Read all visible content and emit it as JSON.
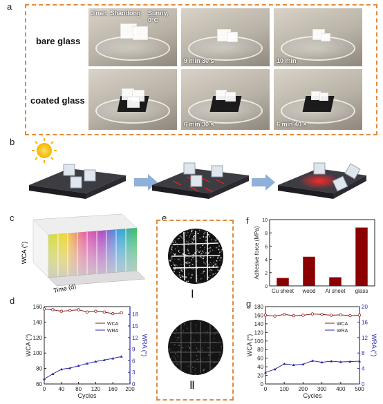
{
  "panels": {
    "a": "a",
    "b": "b",
    "c": "c",
    "d": "d",
    "e": "e",
    "f": "f",
    "g": "g"
  },
  "panel_a": {
    "row_labels": [
      "bare glass",
      "coated glass"
    ],
    "overlay_location": "Jinan, Shandong",
    "overlay_weather": "Sunny, 0°C",
    "times_bare": [
      "9 min 30 s",
      "10 min"
    ],
    "times_coated": [
      "6 min 30 s",
      "6 min 40 s"
    ]
  },
  "panel_c": {
    "z_label": "WCA (°)",
    "x_label": "Time (d)"
  },
  "panel_e": {
    "label_1": "Ⅰ",
    "label_2": "Ⅱ"
  },
  "colors": {
    "dashed_border": "#e08a3c",
    "wca": "#8b1a1a",
    "wra": "#2a2aa8",
    "bar": "#8b0000",
    "arrow": "#8fb0d8"
  },
  "chart_data": [
    {
      "id": "d",
      "type": "line",
      "xlabel": "Cycles",
      "ylabel": "WCA (°)",
      "y2label": "WRA (°)",
      "xlim": [
        0,
        200
      ],
      "ylim": [
        60,
        160
      ],
      "y2lim": [
        0,
        20
      ],
      "xticks": [
        "0",
        "40",
        "80",
        "120",
        "160",
        "200"
      ],
      "yticks": [
        "60",
        "80",
        "100",
        "120",
        "140",
        "160"
      ],
      "y2ticks": [
        "0",
        "3",
        "6",
        "9",
        "12",
        "15",
        "18"
      ],
      "series": [
        {
          "name": "WCA",
          "axis": "left",
          "x": [
            0,
            20,
            40,
            60,
            80,
            100,
            120,
            140,
            160,
            180
          ],
          "values": [
            157,
            156,
            154,
            155,
            156,
            153,
            154,
            153,
            151,
            152
          ]
        },
        {
          "name": "WRA",
          "axis": "right",
          "x": [
            0,
            20,
            40,
            60,
            80,
            100,
            120,
            140,
            160,
            180
          ],
          "values": [
            1.3,
            2.6,
            3.8,
            4.1,
            4.7,
            5.3,
            5.8,
            6.2,
            6.6,
            7.1
          ]
        }
      ],
      "legend": "right"
    },
    {
      "id": "f",
      "type": "bar",
      "ylabel": "Adhesive force (MPa)",
      "ylim": [
        0,
        10
      ],
      "yticks": [
        "0",
        "2",
        "4",
        "6",
        "8",
        "10"
      ],
      "categories": [
        "Cu sheet",
        "wood",
        "Al sheet",
        "glass"
      ],
      "values": [
        1.2,
        4.4,
        1.3,
        8.8
      ]
    },
    {
      "id": "g",
      "type": "line",
      "xlabel": "Cycles",
      "ylabel": "WCA (°)",
      "y2label": "WRA (°)",
      "xlim": [
        0,
        500
      ],
      "ylim": [
        0,
        180
      ],
      "y2lim": [
        0,
        20
      ],
      "xticks": [
        "0",
        "100",
        "200",
        "300",
        "400",
        "500"
      ],
      "yticks": [
        "0",
        "20",
        "40",
        "60",
        "80",
        "100",
        "120",
        "140",
        "160",
        "180"
      ],
      "y2ticks": [
        "0",
        "4",
        "8",
        "12",
        "16",
        "20"
      ],
      "series": [
        {
          "name": "WCA",
          "axis": "left",
          "x": [
            0,
            50,
            100,
            150,
            200,
            250,
            300,
            350,
            400,
            450,
            500
          ],
          "values": [
            160,
            158,
            162,
            159,
            160,
            163,
            162,
            160,
            161,
            159,
            160
          ]
        },
        {
          "name": "WRA",
          "axis": "right",
          "x": [
            0,
            50,
            100,
            150,
            200,
            250,
            300,
            350,
            400,
            450,
            500
          ],
          "values": [
            3.0,
            3.8,
            5.2,
            4.9,
            5.1,
            6.0,
            5.6,
            5.9,
            5.7,
            5.8,
            5.9
          ]
        }
      ],
      "legend": "right"
    }
  ]
}
